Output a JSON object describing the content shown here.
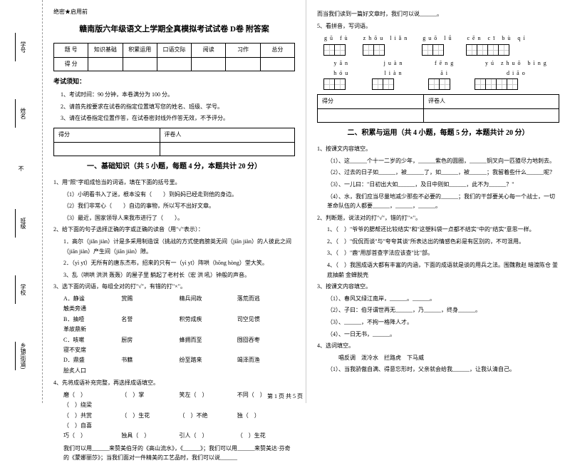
{
  "binding": {
    "labels": [
      "学号",
      "姓名",
      "班级",
      "学校",
      "乡镇(街道)"
    ],
    "side_chars": [
      "题",
      "答",
      "内",
      "线",
      "封",
      "密"
    ],
    "fold": "不"
  },
  "header": {
    "secret": "绝密★启用前",
    "title": "赣南版六年级语文上学期全真模拟考试试卷 D卷 附答案"
  },
  "score_table": {
    "cols": [
      "题 号",
      "知识基础",
      "积累运用",
      "口语交际",
      "阅读",
      "习作",
      "总分"
    ],
    "row_label": "得 分"
  },
  "notice": {
    "title": "考试须知：",
    "items": [
      "1、考试时间：90 分钟，本卷满分为 100 分。",
      "2、请首先按要求在试卷的指定位置填写您的姓名、班级、学号。",
      "3、请在试卷指定位置作答，在试卷密封线外作答无效，不予评分。"
    ]
  },
  "eval": {
    "c1": "得分",
    "c2": "评卷人"
  },
  "section1": {
    "title": "一、基础知识（共 5 小题，每题 4 分，本题共计 20 分）",
    "q1": "1、用\"照\"字组成恰当的词语，填在下面的括号里。",
    "q1a": "（1）小明看书入了迷，根本没有（　　）到妈妈已经走到他的身边。",
    "q1b": "（2）我们非常心（　　）自边的事物，所以写不出好文章。",
    "q1c": "（3）最近，国家领导人来我市进行了（　　）。",
    "q2": "2、给下面的句子选择正确的字或正确的读音（用\"√\"表示）：",
    "q2a": "1．高尔（jiǎn jiàn）计是多采用制造误（挑战的方式使肩膀英无间（jiān jiàn）的人彼此之间（jiān jiàn）产生间（jiān jiàn）隙。",
    "q2b": "2．（yì yī）无所有的唐东杰布，招来的只有一（yì yī）阵哄（hōng hòng）堂大笑。",
    "q2c": "3、乱（哄哄 洪洪 轰轰）的屋子里 躺起了老村长（宏 洪 吼）钟般的声音。",
    "q3": "3、选下面的词语，每组全对的打\"√\"，有错的打\"×\"。",
    "q3opts": [
      [
        "A．静谧",
        "赏赐",
        "精兵间政",
        "落荒而逃",
        "触类旁通"
      ],
      [
        "B．抽噎",
        "名誉",
        "积劳成疾",
        "司空见惯",
        "革故鼎新"
      ],
      [
        "C．咳嗽",
        "厨房",
        "蜂拥而至",
        "囫囵吞枣",
        "寝不安席"
      ],
      [
        "D．鼎盛",
        "书籍",
        "纷至踏来",
        "竭泽而渔",
        "脍炙人口"
      ]
    ],
    "q4": "4、先将成语补充完整，再选择成语填空。",
    "q4opts": [
      [
        "磨（　）",
        "（　）掌",
        "笑左（　）",
        "不同（　）",
        "（　）绕梁"
      ],
      [
        "（　）共赏",
        "（　）生花",
        "（　）不绝",
        "独（　）",
        "（　）自喜"
      ],
      [
        "巧（　）",
        "独具（　）",
        "引人（　）",
        "（　）生花",
        ""
      ]
    ],
    "q5text": "我们可以用______来赞美伯牙的《高山流水》，《______》；我们可以用______来赞美达·芬奇的《蒙娜丽莎》；当我们面对一件精美的工艺品时，我们可以说______"
  },
  "section2_intro": {
    "line1": "而当我们读到一篇好文章时，我们可以说______。",
    "q5": "5、看拼音，写词语。"
  },
  "pinyin": {
    "row1": [
      {
        "py": "gū fù",
        "n": 2
      },
      {
        "py": "zhōu liǎn",
        "n": 2
      },
      {
        "py": "guō lǘ",
        "n": 2
      },
      {
        "py": "cēn cī bù qí",
        "n": 4
      }
    ],
    "row2": [
      {
        "py": "yān hóu",
        "n": 2
      },
      {
        "py": "juàn liàn",
        "n": 2
      },
      {
        "py": "fēng āi",
        "n": 2
      },
      {
        "py": "yú zhuō bìng diāo",
        "n": 4
      }
    ]
  },
  "section2": {
    "title": "二、积累与运用（共 4 小题，每题 5 分，本题共计 20 分）",
    "q1": "1、按课文内容填空。",
    "q1a": "（1）、这______个十一二岁的少年，______紫色的圆圈，______铜叉向一匹猹尽力地刺去。",
    "q1b": "（2）、过去的日子如______，被______了，如______，被______；我留着些什么______呢？",
    "q1c": "（3）、一儿曰：\"日初出大如______，及日中则如______，此不为______？\"",
    "q1d": "（4）、水，我们应当尽量地减少那些不必要的______；我们的干部要关心每一个战士，一切革命队伍的人都要______，______，______。",
    "q2": "2、判断题，说法对的打\"√\"，错的打\"×\"。",
    "q2a": "1、（　）\"爷爷的腮帮还比较结实\"和\"这塑料袋一点都不结实\"中的\"结实\"意思一样。",
    "q2b": "2、（　）\"侃侃而谈\"与\"夸夸其谈\"所表达出的情感色彩是有区别的，不可混用。",
    "q2c": "3、（　）\"鹿\"用部首查字法应该查\"比\"部。",
    "q2d": "4、（　）我国成语大都有丰富的内涵，下面的成语就是谈的用兵之法。围魏救赵 暗渡陈仓 釜底抽薪 金蝉脱壳",
    "q3": "3、按课文内容填空。",
    "q3a": "（1）、春风又绿江南岸，______。______。",
    "q3b": "（2）、子曰：伯牙谓世再无______，乃______，终身______。",
    "q3c": "（3）、______，不拘一格降人才。",
    "q3d": "（4）、一日无书，______。",
    "q4": "4、选词填空。",
    "q4a": "　　唱反调　泼冷水　拦路虎　下马威",
    "q4b": "（1）、当我骄傲自满、得意忘形时，父亲就会给我______，让我认清自己。"
  },
  "footer": "第 1 页 共 5 页"
}
